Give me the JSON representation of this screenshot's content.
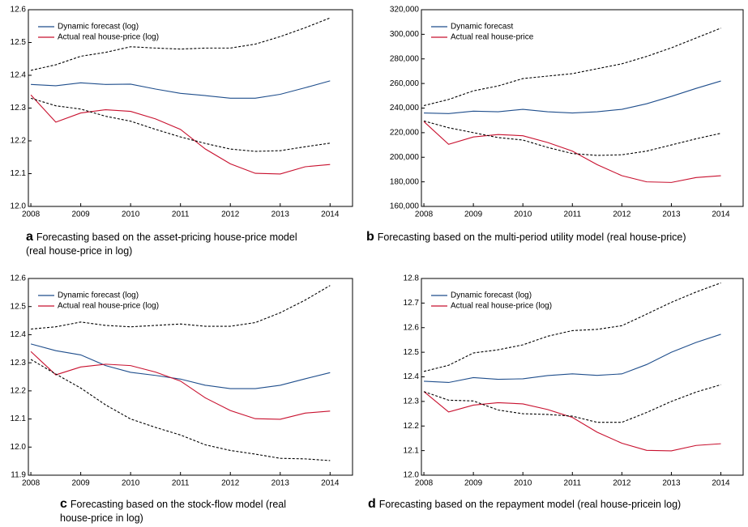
{
  "chart_data": [
    {
      "type": "line",
      "label": "a",
      "caption": "Forecasting based on the asset-pricing house-price model (real house-price in log)",
      "x": [
        2008,
        2008.5,
        2009,
        2009.5,
        2010,
        2010.5,
        2011,
        2011.5,
        2012,
        2012.5,
        2013,
        2013.5,
        2014
      ],
      "xlim": [
        2007.95,
        2014.45
      ],
      "xticks": [
        2008,
        2009,
        2010,
        2011,
        2012,
        2013,
        2014
      ],
      "ylim": [
        12.0,
        12.6
      ],
      "yticks": [
        {
          "value": 12,
          "label": "12.0"
        },
        12.1,
        12.2,
        12.3,
        12.4,
        12.5,
        12.6
      ],
      "series": [
        {
          "name": "Dynamic forecast (log)",
          "color": "#1f4e8c",
          "values": [
            12.372,
            12.368,
            12.377,
            12.372,
            12.373,
            12.358,
            12.345,
            12.338,
            12.33,
            12.33,
            12.342,
            12.362,
            12.383
          ]
        },
        {
          "name": "Actual real house-price (log)",
          "color": "#c8102e",
          "values": [
            12.34,
            12.257,
            12.285,
            12.295,
            12.29,
            12.267,
            12.235,
            12.175,
            12.13,
            12.101,
            12.099,
            12.121,
            12.128
          ]
        },
        {
          "color": "#000000",
          "dash": true,
          "values": [
            12.415,
            12.432,
            12.458,
            12.47,
            12.487,
            12.483,
            12.48,
            12.483,
            12.483,
            12.495,
            12.518,
            12.545,
            12.575
          ]
        },
        {
          "color": "#000000",
          "dash": true,
          "values": [
            12.33,
            12.307,
            12.297,
            12.275,
            12.26,
            12.235,
            12.212,
            12.192,
            12.175,
            12.168,
            12.17,
            12.182,
            12.193
          ]
        }
      ]
    },
    {
      "type": "line",
      "label": "b",
      "caption": "Forecasting based on the multi-period utility model (real house-price)",
      "x": [
        2008,
        2008.5,
        2009,
        2009.5,
        2010,
        2010.5,
        2011,
        2011.5,
        2012,
        2012.5,
        2013,
        2013.5,
        2014
      ],
      "xlim": [
        2007.95,
        2014.45
      ],
      "xticks": [
        2008,
        2009,
        2010,
        2011,
        2012,
        2013,
        2014
      ],
      "ylim": [
        160000,
        320000
      ],
      "yticks": [
        {
          "value": 160000,
          "label": "160,000"
        },
        {
          "value": 180000,
          "label": "180,000"
        },
        {
          "value": 200000,
          "label": "200,000"
        },
        {
          "value": 220000,
          "label": "220,000"
        },
        {
          "value": 240000,
          "label": "240,000"
        },
        {
          "value": 260000,
          "label": "260,000"
        },
        {
          "value": 280000,
          "label": "280,000"
        },
        {
          "value": 300000,
          "label": "300,000"
        },
        {
          "value": 320000,
          "label": "320,000"
        }
      ],
      "series": [
        {
          "name": "Dynamic forecast",
          "color": "#1f4e8c",
          "values": [
            236000,
            235500,
            237500,
            237000,
            239000,
            237000,
            236000,
            237000,
            239000,
            243500,
            249500,
            256000,
            262000
          ]
        },
        {
          "name": "Actual real house-price",
          "color": "#c8102e",
          "values": [
            229000,
            210500,
            216500,
            218500,
            217500,
            212000,
            205000,
            194000,
            185000,
            180000,
            179500,
            183500,
            185000
          ]
        },
        {
          "color": "#000000",
          "dash": true,
          "values": [
            242000,
            247000,
            254000,
            258000,
            264000,
            266000,
            268000,
            272000,
            276000,
            282000,
            289000,
            297000,
            305000
          ]
        },
        {
          "color": "#000000",
          "dash": true,
          "values": [
            229500,
            224000,
            220000,
            216000,
            214000,
            208000,
            203000,
            201500,
            202000,
            205000,
            210000,
            215000,
            219500
          ]
        }
      ]
    },
    {
      "type": "line",
      "label": "c",
      "caption": "Forecasting based on the stock-flow model (real house-price in log)",
      "x": [
        2008,
        2008.5,
        2009,
        2009.5,
        2010,
        2010.5,
        2011,
        2011.5,
        2012,
        2012.5,
        2013,
        2013.5,
        2014
      ],
      "xlim": [
        2007.95,
        2014.45
      ],
      "xticks": [
        2008,
        2009,
        2010,
        2011,
        2012,
        2013,
        2014
      ],
      "ylim": [
        11.9,
        12.6
      ],
      "yticks": [
        11.9,
        {
          "value": 12,
          "label": "12.0"
        },
        12.1,
        12.2,
        12.3,
        12.4,
        12.5,
        12.6
      ],
      "series": [
        {
          "name": "Dynamic forecast (log)",
          "color": "#1f4e8c",
          "values": [
            12.367,
            12.343,
            12.328,
            12.29,
            12.266,
            12.255,
            12.242,
            12.22,
            12.208,
            12.208,
            12.22,
            12.243,
            12.265
          ]
        },
        {
          "name": "Actual real house-price (log)",
          "color": "#c8102e",
          "values": [
            12.34,
            12.257,
            12.285,
            12.295,
            12.29,
            12.267,
            12.235,
            12.175,
            12.13,
            12.101,
            12.099,
            12.121,
            12.128
          ]
        },
        {
          "color": "#000000",
          "dash": true,
          "values": [
            12.42,
            12.428,
            12.445,
            12.433,
            12.428,
            12.433,
            12.438,
            12.43,
            12.43,
            12.443,
            12.478,
            12.523,
            12.575
          ]
        },
        {
          "color": "#000000",
          "dash": true,
          "values": [
            12.312,
            12.26,
            12.21,
            12.15,
            12.1,
            12.07,
            12.043,
            12.008,
            11.988,
            11.975,
            11.96,
            11.958,
            11.952
          ]
        }
      ]
    },
    {
      "type": "line",
      "label": "d",
      "caption": "Forecasting based on the repayment model (real house-pricein log)",
      "x": [
        2008,
        2008.5,
        2009,
        2009.5,
        2010,
        2010.5,
        2011,
        2011.5,
        2012,
        2012.5,
        2013,
        2013.5,
        2014
      ],
      "xlim": [
        2007.95,
        2014.45
      ],
      "xticks": [
        2008,
        2009,
        2010,
        2011,
        2012,
        2013,
        2014
      ],
      "ylim": [
        12.0,
        12.8
      ],
      "yticks": [
        {
          "value": 12,
          "label": "12.0"
        },
        12.1,
        12.2,
        12.3,
        12.4,
        12.5,
        12.6,
        12.7,
        12.8
      ],
      "series": [
        {
          "name": "Dynamic forecast (log)",
          "color": "#1f4e8c",
          "values": [
            12.382,
            12.377,
            12.397,
            12.39,
            12.392,
            12.405,
            12.412,
            12.406,
            12.412,
            12.45,
            12.5,
            12.54,
            12.573
          ]
        },
        {
          "name": "Actual real house-price (log)",
          "color": "#c8102e",
          "values": [
            12.34,
            12.257,
            12.285,
            12.295,
            12.29,
            12.267,
            12.235,
            12.175,
            12.13,
            12.101,
            12.099,
            12.121,
            12.128
          ]
        },
        {
          "color": "#000000",
          "dash": true,
          "values": [
            12.422,
            12.447,
            12.497,
            12.51,
            12.53,
            12.565,
            12.588,
            12.593,
            12.608,
            12.655,
            12.703,
            12.745,
            12.782
          ]
        },
        {
          "color": "#000000",
          "dash": true,
          "values": [
            12.34,
            12.305,
            12.302,
            12.265,
            12.25,
            12.247,
            12.24,
            12.215,
            12.215,
            12.255,
            12.3,
            12.338,
            12.368
          ]
        }
      ]
    }
  ]
}
